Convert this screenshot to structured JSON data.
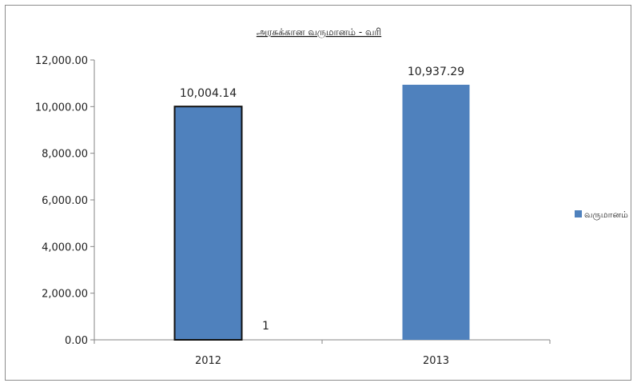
{
  "chart_data": {
    "type": "bar",
    "title": "அரசுக்கான வருமானம் - வரி",
    "categories": [
      "2012",
      "2013"
    ],
    "series": [
      {
        "name": "வருமானம்",
        "values": [
          10004.14,
          10937.29
        ],
        "color": "#4f81bd"
      }
    ],
    "data_labels": [
      "10,004.14",
      "10,937.29"
    ],
    "extra_label": "1",
    "y_ticks": [
      "0.00",
      "2,000.00",
      "4,000.00",
      "6,000.00",
      "8,000.00",
      "10,000.00",
      "12,000.00"
    ],
    "ylim": [
      0,
      12000
    ],
    "grid": false,
    "legend_position": "right",
    "xlabel": "",
    "ylabel": ""
  }
}
